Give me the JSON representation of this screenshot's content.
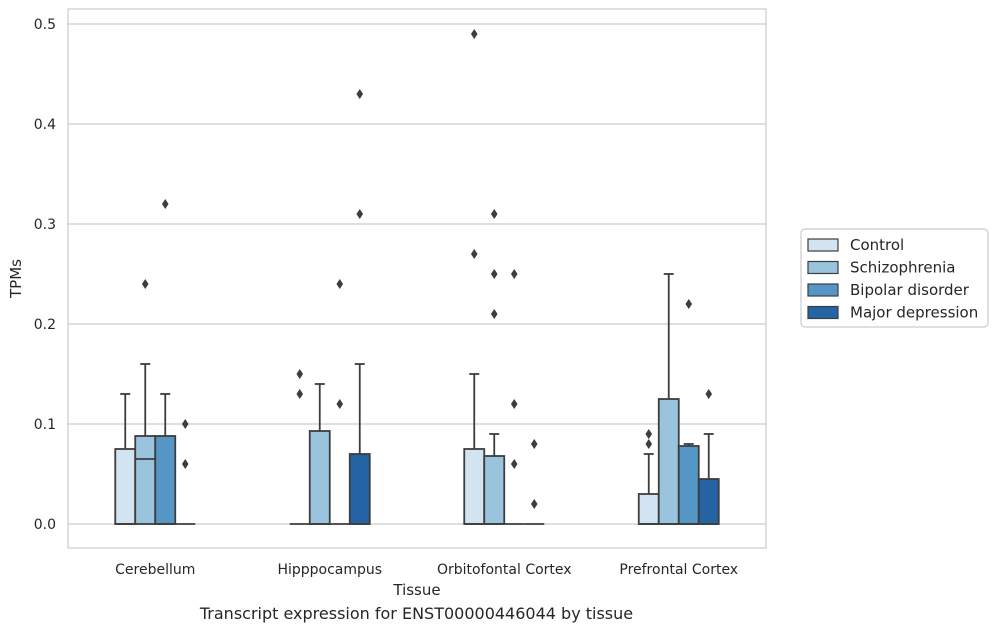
{
  "caption": "Transcript expression for ENST00000446044 by tissue",
  "chart_data": {
    "type": "box",
    "xlabel": "Tissue",
    "ylabel": "TPMs",
    "ylim": [
      -0.024,
      0.515
    ],
    "yticks": [
      0.0,
      0.1,
      0.2,
      0.3,
      0.4,
      0.5
    ],
    "ytick_labels": [
      "0.0",
      "0.1",
      "0.2",
      "0.3",
      "0.4",
      "0.5"
    ],
    "categories": [
      "Cerebellum",
      "Hipppocampus",
      "Orbitofontal Cortex",
      "Prefrontal Cortex"
    ],
    "grid": "horizontal",
    "legend_position": "right",
    "series": [
      {
        "name": "Control",
        "color": "#d2e3f2",
        "boxes": [
          {
            "q1": 0.0,
            "median": 0.0,
            "q3": 0.075,
            "whisker_low": 0.0,
            "whisker_high": 0.13,
            "outliers": []
          },
          {
            "q1": 0.0,
            "median": 0.0,
            "q3": 0.0,
            "whisker_low": 0.0,
            "whisker_high": 0.0,
            "outliers": [
              0.13,
              0.15
            ]
          },
          {
            "q1": 0.0,
            "median": 0.0,
            "q3": 0.075,
            "whisker_low": 0.0,
            "whisker_high": 0.15,
            "outliers": [
              0.27,
              0.49
            ]
          },
          {
            "q1": 0.0,
            "median": 0.0,
            "q3": 0.03,
            "whisker_low": 0.0,
            "whisker_high": 0.07,
            "outliers": [
              0.08,
              0.09
            ]
          }
        ]
      },
      {
        "name": "Schizophrenia",
        "color": "#9ac4de",
        "boxes": [
          {
            "q1": 0.0,
            "median": 0.065,
            "q3": 0.088,
            "whisker_low": 0.0,
            "whisker_high": 0.16,
            "outliers": [
              0.24
            ]
          },
          {
            "q1": 0.0,
            "median": 0.0,
            "q3": 0.093,
            "whisker_low": 0.0,
            "whisker_high": 0.14,
            "outliers": []
          },
          {
            "q1": 0.0,
            "median": 0.0,
            "q3": 0.068,
            "whisker_low": 0.0,
            "whisker_high": 0.09,
            "outliers": [
              0.21,
              0.25,
              0.31
            ]
          },
          {
            "q1": 0.0,
            "median": 0.0,
            "q3": 0.125,
            "whisker_low": 0.0,
            "whisker_high": 0.25,
            "outliers": []
          }
        ]
      },
      {
        "name": "Bipolar disorder",
        "color": "#5497c6",
        "boxes": [
          {
            "q1": 0.0,
            "median": 0.0,
            "q3": 0.088,
            "whisker_low": 0.0,
            "whisker_high": 0.13,
            "outliers": [
              0.32
            ]
          },
          {
            "q1": 0.0,
            "median": 0.0,
            "q3": 0.0,
            "whisker_low": 0.0,
            "whisker_high": 0.0,
            "outliers": [
              0.12,
              0.24
            ]
          },
          {
            "q1": 0.0,
            "median": 0.0,
            "q3": 0.0,
            "whisker_low": 0.0,
            "whisker_high": 0.0,
            "outliers": [
              0.06,
              0.12,
              0.25
            ]
          },
          {
            "q1": 0.0,
            "median": 0.0,
            "q3": 0.078,
            "whisker_low": 0.0,
            "whisker_high": 0.08,
            "outliers": [
              0.22
            ]
          }
        ]
      },
      {
        "name": "Major depression",
        "color": "#2564a4",
        "boxes": [
          {
            "q1": 0.0,
            "median": 0.0,
            "q3": 0.0,
            "whisker_low": 0.0,
            "whisker_high": 0.0,
            "outliers": [
              0.06,
              0.1
            ]
          },
          {
            "q1": 0.0,
            "median": 0.0,
            "q3": 0.07,
            "whisker_low": 0.0,
            "whisker_high": 0.16,
            "outliers": [
              0.31,
              0.43
            ]
          },
          {
            "q1": 0.0,
            "median": 0.0,
            "q3": 0.0,
            "whisker_low": 0.0,
            "whisker_high": 0.0,
            "outliers": [
              0.02,
              0.08
            ]
          },
          {
            "q1": 0.0,
            "median": 0.0,
            "q3": 0.045,
            "whisker_low": 0.0,
            "whisker_high": 0.09,
            "outliers": [
              0.13
            ]
          }
        ]
      }
    ]
  }
}
